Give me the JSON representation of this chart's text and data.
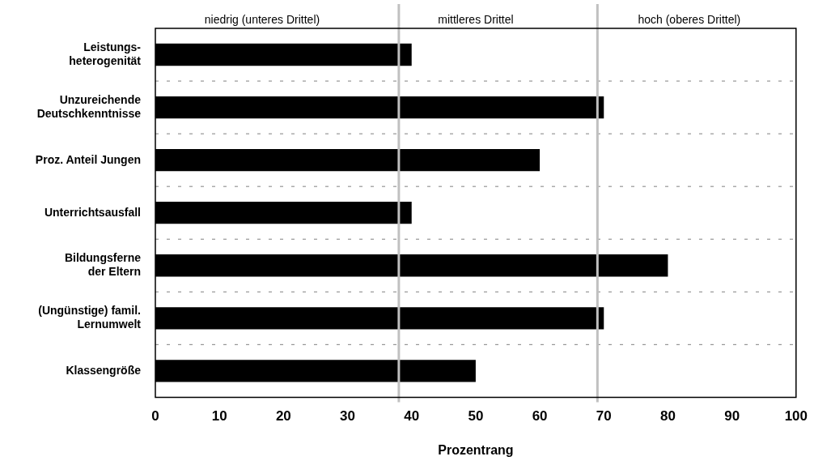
{
  "chart_data": {
    "type": "bar",
    "orientation": "horizontal",
    "xlabel": "Prozentrang",
    "categories": [
      "Leistungs-\nheterogenität",
      "Unzureichende\nDeutschkenntnisse",
      "Proz. Anteil Jungen",
      "Unterrichtsausfall",
      "Bildungsferne\nder Eltern",
      "(Ungünstige) famil.\nLernumwelt",
      "Klassengröße"
    ],
    "values": [
      40,
      70,
      60,
      40,
      80,
      70,
      50
    ],
    "color": "#000000",
    "xlim": [
      0,
      100
    ],
    "xticks": [
      0,
      10,
      20,
      30,
      40,
      50,
      60,
      70,
      80,
      90,
      100
    ],
    "grid": "y",
    "legend": false,
    "ref_lines": [
      {
        "axis": "x",
        "value": 38,
        "color": "#c0c0c0"
      },
      {
        "axis": "x",
        "value": 69,
        "color": "#c0c0c0"
      }
    ],
    "annotations": [
      "niedrig (unteres Drittel)",
      "mittleres Drittel",
      "hoch (oberes Drittel)"
    ]
  }
}
